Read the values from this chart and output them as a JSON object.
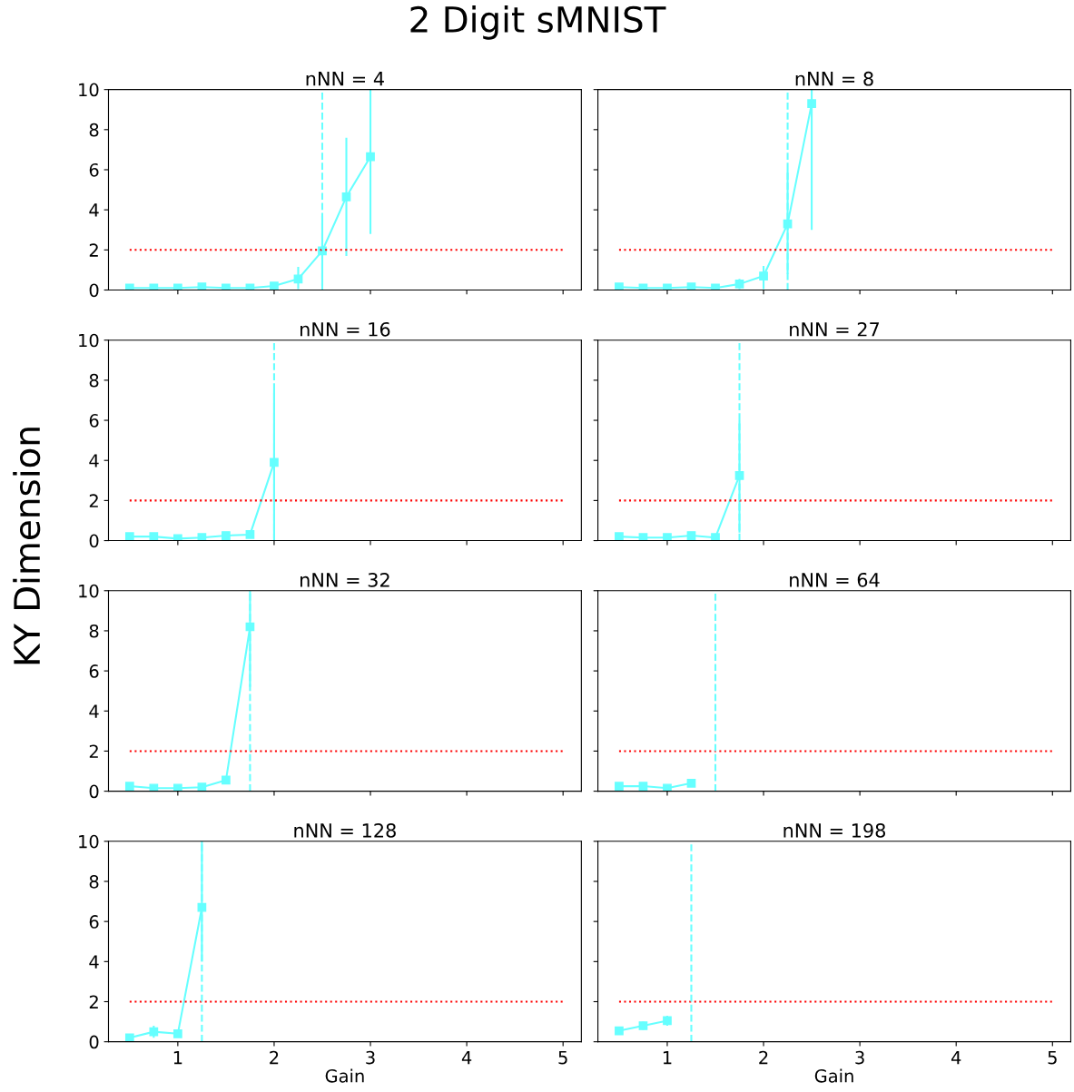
{
  "chart_data": [
    {
      "type": "line",
      "title": "nNN = 4",
      "xlim": [
        0.28,
        5.19
      ],
      "xticks": [
        1,
        2,
        3,
        4,
        5
      ],
      "ylim": [
        0,
        10
      ],
      "yticks": [
        0,
        2,
        4,
        6,
        8,
        10
      ],
      "tick_labels": "y",
      "annotations": [
        "2 Digit sMNIST",
        "KY Dimension"
      ],
      "ref_lines": [
        {
          "axis": "x",
          "value": 2.5,
          "color": "#66ffff",
          "line_style": "dashed"
        }
      ],
      "series": [
        {
          "color": "#66ffff",
          "marker": "square",
          "line_style": "solid",
          "x": [
            0.5,
            0.75,
            1,
            1.25,
            1.5,
            1.75,
            2,
            2.25,
            2.5,
            2.75,
            3
          ],
          "values": [
            0.1,
            0.1,
            0.1,
            0.15,
            0.1,
            0.1,
            0.2,
            0.55,
            1.95,
            4.65,
            6.65
          ],
          "errors": [
            null,
            null,
            null,
            null,
            null,
            null,
            null,
            [
              0.05,
              1.15
            ],
            [
              0.2,
              3.7
            ],
            [
              1.7,
              7.6
            ],
            [
              2.8,
              10
            ]
          ]
        },
        {
          "color": "#ff0000",
          "marker": "none",
          "line_style": "dotted",
          "x": [
            0.5,
            5
          ],
          "values": [
            2,
            2
          ]
        }
      ]
    },
    {
      "type": "line",
      "title": "nNN = 8",
      "xlim": [
        0.28,
        5.19
      ],
      "xticks": [
        1,
        2,
        3,
        4,
        5
      ],
      "ylim": [
        0,
        10
      ],
      "yticks": [
        0,
        2,
        4,
        6,
        8,
        10
      ],
      "tick_labels": false,
      "ref_lines": [
        {
          "axis": "x",
          "value": 2.25,
          "color": "#66ffff",
          "line_style": "dashed"
        }
      ],
      "series": [
        {
          "color": "#66ffff",
          "marker": "square",
          "line_style": "solid",
          "x": [
            0.5,
            0.75,
            1,
            1.25,
            1.5,
            1.75,
            2,
            2.25,
            2.5
          ],
          "values": [
            0.15,
            0.1,
            0.1,
            0.15,
            0.1,
            0.3,
            0.7,
            3.3,
            9.3
          ],
          "errors": [
            null,
            null,
            null,
            null,
            null,
            [
              0.05,
              0.55
            ],
            [
              0.05,
              1.2
            ],
            [
              0.8,
              6
            ],
            [
              3,
              10
            ]
          ]
        },
        {
          "color": "#ff0000",
          "marker": "none",
          "line_style": "dotted",
          "x": [
            0.5,
            5
          ],
          "values": [
            2,
            2
          ]
        }
      ]
    },
    {
      "type": "line",
      "title": "nNN = 16",
      "xlim": [
        0.28,
        5.19
      ],
      "xticks": [
        1,
        2,
        3,
        4,
        5
      ],
      "ylim": [
        0,
        10
      ],
      "yticks": [
        0,
        2,
        4,
        6,
        8,
        10
      ],
      "tick_labels": "y",
      "ref_lines": [
        {
          "axis": "x",
          "value": 2,
          "color": "#66ffff",
          "line_style": "dashed"
        }
      ],
      "series": [
        {
          "color": "#66ffff",
          "marker": "square",
          "line_style": "solid",
          "x": [
            0.5,
            0.75,
            1,
            1.25,
            1.5,
            1.75,
            2
          ],
          "values": [
            0.2,
            0.2,
            0.1,
            0.15,
            0.25,
            0.3,
            3.9
          ],
          "errors": [
            null,
            null,
            null,
            null,
            null,
            null,
            [
              0.1,
              7.5
            ]
          ]
        },
        {
          "color": "#ff0000",
          "marker": "none",
          "line_style": "dotted",
          "x": [
            0.5,
            5
          ],
          "values": [
            2,
            2
          ]
        }
      ]
    },
    {
      "type": "line",
      "title": "nNN = 27",
      "xlim": [
        0.28,
        5.19
      ],
      "xticks": [
        1,
        2,
        3,
        4,
        5
      ],
      "ylim": [
        0,
        10
      ],
      "yticks": [
        0,
        2,
        4,
        6,
        8,
        10
      ],
      "tick_labels": false,
      "ref_lines": [
        {
          "axis": "x",
          "value": 1.75,
          "color": "#66ffff",
          "line_style": "dashed"
        }
      ],
      "series": [
        {
          "color": "#66ffff",
          "marker": "square",
          "line_style": "solid",
          "x": [
            0.5,
            0.75,
            1,
            1.25,
            1.5,
            1.75
          ],
          "values": [
            0.2,
            0.15,
            0.15,
            0.25,
            0.15,
            3.25
          ],
          "errors": [
            null,
            null,
            null,
            null,
            null,
            [
              0.4,
              6
            ]
          ]
        },
        {
          "color": "#ff0000",
          "marker": "none",
          "line_style": "dotted",
          "x": [
            0.5,
            5
          ],
          "values": [
            2,
            2
          ]
        }
      ]
    },
    {
      "type": "line",
      "title": "nNN = 32",
      "xlim": [
        0.28,
        5.19
      ],
      "xticks": [
        1,
        2,
        3,
        4,
        5
      ],
      "ylim": [
        0,
        10
      ],
      "yticks": [
        0,
        2,
        4,
        6,
        8,
        10
      ],
      "tick_labels": "y",
      "ref_lines": [
        {
          "axis": "x",
          "value": 1.75,
          "color": "#66ffff",
          "line_style": "dashed"
        }
      ],
      "series": [
        {
          "color": "#66ffff",
          "marker": "square",
          "line_style": "solid",
          "x": [
            0.5,
            0.75,
            1,
            1.25,
            1.5,
            1.75
          ],
          "values": [
            0.25,
            0.15,
            0.15,
            0.2,
            0.55,
            8.2
          ],
          "errors": [
            null,
            null,
            null,
            null,
            null,
            [
              5.2,
              10
            ]
          ]
        },
        {
          "color": "#ff0000",
          "marker": "none",
          "line_style": "dotted",
          "x": [
            0.5,
            5
          ],
          "values": [
            2,
            2
          ]
        }
      ]
    },
    {
      "type": "line",
      "title": "nNN = 64",
      "xlim": [
        0.28,
        5.19
      ],
      "xticks": [
        1,
        2,
        3,
        4,
        5
      ],
      "ylim": [
        0,
        10
      ],
      "yticks": [
        0,
        2,
        4,
        6,
        8,
        10
      ],
      "tick_labels": false,
      "ref_lines": [
        {
          "axis": "x",
          "value": 1.5,
          "color": "#66ffff",
          "line_style": "dashed"
        }
      ],
      "series": [
        {
          "color": "#66ffff",
          "marker": "square",
          "line_style": "solid",
          "x": [
            0.5,
            0.75,
            1,
            1.25
          ],
          "values": [
            0.25,
            0.25,
            0.15,
            0.4
          ]
        },
        {
          "color": "#ff0000",
          "marker": "none",
          "line_style": "dotted",
          "x": [
            0.5,
            5
          ],
          "values": [
            2,
            2
          ]
        }
      ]
    },
    {
      "type": "line",
      "title": "nNN = 128",
      "xlabel": "Gain",
      "xlim": [
        0.28,
        5.19
      ],
      "xticks": [
        1,
        2,
        3,
        4,
        5
      ],
      "ylim": [
        0,
        10
      ],
      "yticks": [
        0,
        2,
        4,
        6,
        8,
        10
      ],
      "ref_lines": [
        {
          "axis": "x",
          "value": 1.25,
          "color": "#66ffff",
          "line_style": "dashed"
        }
      ],
      "series": [
        {
          "color": "#66ffff",
          "marker": "square",
          "line_style": "solid",
          "x": [
            0.5,
            0.75,
            1,
            1.25
          ],
          "values": [
            0.2,
            0.5,
            0.4,
            6.7
          ],
          "errors": [
            null,
            [
              0.2,
              0.8
            ],
            null,
            [
              4,
              10
            ]
          ]
        },
        {
          "color": "#ff0000",
          "marker": "none",
          "line_style": "dotted",
          "x": [
            0.5,
            5
          ],
          "values": [
            2,
            2
          ]
        }
      ]
    },
    {
      "type": "line",
      "title": "nNN = 198",
      "xlabel": "Gain",
      "xlim": [
        0.28,
        5.19
      ],
      "xticks": [
        1,
        2,
        3,
        4,
        5
      ],
      "ylim": [
        0,
        10
      ],
      "yticks": [
        0,
        2,
        4,
        6,
        8,
        10
      ],
      "tick_labels": "x",
      "ref_lines": [
        {
          "axis": "x",
          "value": 1.25,
          "color": "#66ffff",
          "line_style": "dashed"
        }
      ],
      "series": [
        {
          "color": "#66ffff",
          "marker": "square",
          "line_style": "solid",
          "x": [
            0.5,
            0.75,
            1
          ],
          "values": [
            0.55,
            0.8,
            1.05
          ],
          "errors": [
            [
              0.35,
              0.75
            ],
            [
              0.6,
              1.0
            ],
            [
              0.8,
              1.3
            ]
          ]
        },
        {
          "color": "#ff0000",
          "marker": "none",
          "line_style": "dotted",
          "x": [
            0.5,
            5
          ],
          "values": [
            2,
            2
          ]
        }
      ]
    }
  ]
}
